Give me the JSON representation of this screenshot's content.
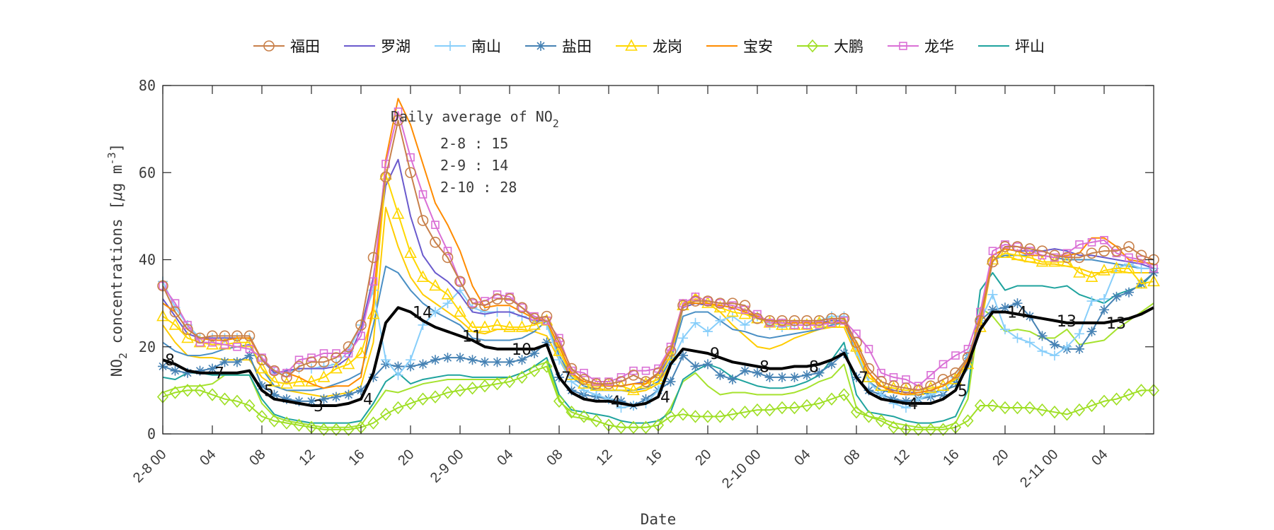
{
  "chart_data": {
    "type": "line",
    "xlabel": "Date",
    "ylabel": "NO2 concentrations [μg m-3]",
    "ylabel_parts": {
      "base": "NO",
      "sub": "2",
      "rest": " concentrations [",
      "mu": "μ",
      "g": "g m",
      "sup": "-3",
      "close": "]"
    },
    "ylim": [
      0,
      80
    ],
    "xlim_hours": [
      0,
      80
    ],
    "y_ticks": [
      0,
      20,
      40,
      60,
      80
    ],
    "x_ticks": [
      "2-8 00",
      "04",
      "08",
      "12",
      "16",
      "20",
      "2-9 00",
      "04",
      "08",
      "12",
      "16",
      "20",
      "2-10 00",
      "04",
      "08",
      "12",
      "16",
      "20",
      "2-11 00",
      "04"
    ],
    "grid": false,
    "legend_placement": "top, outside, horizontal",
    "annotation": {
      "title": "Daily average of NO",
      "title_sub": "2",
      "lines": [
        "2-8 : 15",
        "2-9 : 14",
        "2-10 : 28"
      ]
    },
    "point_labels": [
      "8",
      "7",
      "5",
      "3",
      "4",
      "14",
      "11",
      "10",
      "7",
      "4",
      "4",
      "9",
      "8",
      "8",
      "7",
      "4",
      "5",
      "14",
      "13",
      "13"
    ],
    "series": [
      {
        "name": "福田",
        "color": "#c8804a",
        "marker": "circle",
        "values": [
          34,
          28,
          24,
          22,
          22.5,
          22.5,
          22.5,
          22.5,
          17,
          14.5,
          13,
          15.5,
          16.5,
          16.5,
          17.5,
          20,
          25,
          40.5,
          59,
          72,
          60,
          49,
          44,
          40.5,
          35,
          30,
          29.5,
          31,
          31,
          29,
          26.5,
          27,
          21,
          15,
          12.5,
          11.5,
          11.5,
          12,
          13.5,
          12,
          14,
          19,
          29.5,
          30.5,
          30.5,
          30,
          30,
          29.5,
          26.5,
          26,
          26,
          26,
          26,
          26,
          26.5,
          26.5,
          21,
          15,
          12,
          11,
          10.5,
          10,
          11,
          12.5,
          14,
          17.5,
          26,
          39.5,
          43,
          43,
          42.5,
          42,
          41,
          40.5,
          40.5,
          41.5,
          42,
          42,
          43,
          41,
          40
        ]
      },
      {
        "name": "罗湖",
        "color": "#6a5acd",
        "marker": "none",
        "values": [
          31,
          27,
          23,
          22,
          22,
          22,
          22,
          22,
          17,
          14,
          14.5,
          15,
          15,
          15,
          15.5,
          17.5,
          24,
          36,
          57,
          63,
          50,
          41,
          37,
          35,
          32,
          28,
          27.5,
          28,
          28,
          27,
          26,
          26,
          20,
          14,
          11.5,
          11,
          11,
          11,
          11.5,
          12,
          13.5,
          18,
          29,
          30,
          29.5,
          29.5,
          29,
          28,
          26.5,
          26,
          25.5,
          25.5,
          25.5,
          25.5,
          26,
          26,
          20,
          14,
          11,
          10,
          9.5,
          9.5,
          10,
          11,
          12.5,
          16.5,
          26,
          41,
          42.5,
          42,
          42,
          42,
          42.5,
          42,
          41,
          41,
          40.5,
          40,
          39.5,
          39,
          38
        ]
      },
      {
        "name": "南山",
        "color": "#87cefa",
        "marker": "plus",
        "values": [
          35,
          29,
          25,
          22,
          22,
          22,
          22,
          22,
          17,
          14,
          14,
          15,
          15,
          15.5,
          16,
          19,
          25,
          33,
          17,
          13.5,
          17,
          25,
          28,
          30,
          33,
          29,
          28,
          28,
          28,
          27,
          26,
          25,
          17,
          12,
          10,
          9,
          8,
          6,
          6.5,
          7,
          10,
          16,
          22,
          25.5,
          23.5,
          26,
          27,
          25,
          27,
          25,
          24.5,
          25,
          25,
          26,
          27,
          27,
          19,
          12,
          9,
          7,
          6,
          8,
          9,
          10,
          13,
          18,
          26,
          32,
          24,
          22,
          21,
          19,
          18,
          20,
          23,
          30.5,
          31,
          38,
          39,
          38,
          38
        ]
      },
      {
        "name": "盐田",
        "color": "#4682b4",
        "marker": "asterisk",
        "values": [
          15.5,
          14.5,
          14,
          14.5,
          15,
          16.5,
          16.5,
          18,
          11,
          9,
          8,
          7.5,
          7.5,
          8,
          8.5,
          9,
          10,
          13,
          16,
          15.5,
          15.5,
          16,
          17,
          17.5,
          17.5,
          17,
          16.5,
          16.5,
          16.5,
          17,
          18.5,
          21,
          13,
          10,
          9,
          8.5,
          8,
          7.5,
          6.5,
          8,
          10,
          12,
          18,
          15.5,
          16,
          13.5,
          12.5,
          14.5,
          14,
          13,
          13,
          13,
          13.5,
          14,
          16,
          18.5,
          13,
          10,
          9,
          8,
          7.5,
          8,
          8.5,
          9,
          12,
          18,
          26,
          28.5,
          29,
          30,
          27,
          22.5,
          20.5,
          19.5,
          19.5,
          23.5,
          28.5,
          31.5,
          32.5,
          34.5,
          37
        ]
      },
      {
        "name": "龙岗",
        "color": "#ffd700",
        "marker": "triangle",
        "values": [
          27,
          25,
          22,
          21,
          20.5,
          20.5,
          21,
          21,
          15,
          12,
          11.5,
          12,
          12,
          13,
          15,
          16,
          18.5,
          27.5,
          59.5,
          50.5,
          41.5,
          36,
          34,
          32,
          28,
          24.5,
          24.5,
          25,
          24.5,
          24.5,
          25,
          26,
          19,
          13.5,
          11.5,
          11,
          11,
          11,
          10,
          11.5,
          12.5,
          18,
          29.5,
          31,
          30,
          29,
          28,
          27.5,
          26.5,
          25.5,
          25,
          25,
          25,
          25.5,
          25.5,
          25.5,
          20,
          13,
          11,
          10.5,
          10,
          10,
          10.5,
          11,
          12.5,
          16,
          24.5,
          40,
          41.5,
          41,
          40.5,
          39.5,
          39.5,
          39.5,
          37,
          36,
          37.5,
          38,
          38,
          34.5,
          35
        ]
      },
      {
        "name": "宝安",
        "color": "#ff8c00",
        "marker": "none",
        "values": [
          30,
          28,
          24,
          22,
          21.5,
          21.5,
          22,
          22,
          17,
          14.5,
          14,
          13,
          11.5,
          10.5,
          11,
          11,
          13,
          30,
          63,
          77,
          71,
          62,
          53,
          48,
          42,
          34,
          29,
          29.5,
          29.5,
          28,
          26.5,
          26,
          20,
          14,
          12,
          11.5,
          11,
          11,
          11.5,
          11.5,
          14,
          20,
          30,
          30,
          30,
          29.5,
          29,
          28,
          27,
          26,
          25.5,
          25.5,
          25.5,
          25.5,
          25.5,
          25.5,
          20,
          14,
          11,
          9.5,
          9,
          9.5,
          10,
          11,
          13,
          17,
          27,
          41,
          42.5,
          42,
          41,
          41,
          40.5,
          41,
          41.5,
          45,
          45,
          43,
          40,
          39.5,
          39
        ]
      },
      {
        "name": "大鹏",
        "color": "#9fdf25",
        "marker": "diamond",
        "values": [
          8.5,
          9.5,
          10,
          10,
          9,
          8,
          7.5,
          6.5,
          4,
          3,
          2.5,
          2,
          1.5,
          1,
          1,
          1,
          1.5,
          2.5,
          4.5,
          6,
          7,
          8,
          8.5,
          9.5,
          10,
          10.5,
          11,
          11.5,
          12,
          13,
          14.5,
          15.5,
          7.5,
          5,
          4,
          3,
          2,
          1.5,
          1.5,
          1.5,
          2,
          4,
          4.5,
          4,
          4,
          4,
          4.5,
          5,
          5.5,
          5.5,
          6,
          6,
          6.5,
          7,
          8,
          9,
          5,
          4,
          3,
          1.5,
          1,
          1,
          1,
          1,
          1.5,
          3,
          6.5,
          6.5,
          6,
          6,
          6,
          5.5,
          5,
          4.5,
          5.5,
          6.5,
          7.5,
          8,
          9,
          10,
          10
        ]
      },
      {
        "name": "龙华",
        "color": "#da70d6",
        "marker": "square",
        "values": [
          34,
          30,
          25,
          21,
          21,
          20.5,
          20,
          19.5,
          17.5,
          14.5,
          14,
          17,
          17.5,
          18.5,
          18.5,
          18.5,
          22.5,
          35,
          62,
          74,
          63.5,
          55,
          48,
          42,
          35,
          30,
          30.5,
          32,
          31.5,
          29,
          27,
          26,
          22,
          14.5,
          14,
          12,
          12,
          13,
          14.5,
          14.5,
          15,
          20,
          30,
          31.5,
          30.5,
          30,
          29.5,
          28.5,
          27.5,
          25.5,
          25.5,
          25,
          25,
          25,
          25.5,
          26,
          23,
          19.5,
          14,
          13,
          12.5,
          11,
          13.5,
          16,
          18,
          19.5,
          28,
          42,
          43.5,
          43,
          42,
          41,
          40.5,
          41.5,
          43.5,
          44,
          44.5,
          41.5,
          40.5,
          40,
          38
        ]
      },
      {
        "name": "坪山",
        "color": "#1fa39e",
        "marker": "none",
        "values": [
          13,
          12.5,
          14,
          14,
          13.5,
          13.5,
          13.5,
          13.5,
          8,
          4.5,
          3.5,
          3,
          2.5,
          2.5,
          2.5,
          2.5,
          3,
          7,
          12,
          14,
          11.5,
          12.5,
          13,
          13.5,
          13.5,
          13,
          13,
          13,
          13,
          14,
          15.5,
          17.5,
          9,
          5.5,
          5,
          4.5,
          4,
          3,
          2.5,
          2.5,
          3,
          5,
          12.5,
          14.5,
          16,
          15,
          13,
          12,
          11,
          10.5,
          10.5,
          11,
          12,
          13.5,
          17,
          21,
          9,
          5,
          4.5,
          4,
          3,
          2.5,
          2.5,
          3,
          4,
          10,
          33,
          37,
          33,
          34,
          34,
          34,
          33.5,
          34,
          32,
          31,
          30,
          32,
          33,
          34,
          37
        ]
      },
      {
        "color": "#a6e22e",
        "marker": "none",
        "values": [
          9.5,
          10.5,
          11,
          11,
          11.5,
          13.5,
          13.5,
          13.5,
          7,
          4,
          3,
          2.5,
          2,
          1.5,
          1.5,
          1.5,
          2,
          6,
          10,
          9.5,
          10.5,
          11.5,
          12,
          12.5,
          12.5,
          12.5,
          12.5,
          12.5,
          13,
          14,
          15.5,
          16.5,
          8,
          4,
          3.5,
          3,
          2,
          1.5,
          1.5,
          1.5,
          2,
          6,
          12,
          14,
          11,
          9,
          9.5,
          9.5,
          9,
          9,
          9,
          9.5,
          10.5,
          12,
          13,
          16,
          6,
          4,
          3.5,
          2.5,
          2,
          1.5,
          1.5,
          1.5,
          2.5,
          8,
          29,
          27,
          23.5,
          24,
          23.5,
          22,
          22,
          24,
          20.5,
          21,
          21.5,
          24,
          26,
          28,
          30
        ]
      },
      {
        "color": "#ffcc00",
        "marker": "none",
        "values": [
          25,
          21,
          18,
          17.5,
          17.5,
          17,
          17,
          17,
          13,
          11,
          10,
          9.5,
          9,
          8.5,
          9,
          9.5,
          11,
          21,
          52,
          43,
          36,
          32,
          30,
          28,
          26,
          23.5,
          23,
          24,
          24,
          24,
          23.5,
          22.5,
          17,
          13,
          11,
          10.5,
          10,
          10,
          9.5,
          10,
          11.5,
          16,
          29,
          32,
          30,
          28,
          25,
          22.5,
          20,
          19.5,
          20.5,
          22,
          23,
          24,
          24.5,
          24.5,
          18,
          12,
          10,
          9.5,
          9,
          9,
          9.5,
          10,
          11,
          15,
          24,
          40,
          41,
          40,
          39.5,
          39,
          39,
          38.5,
          38,
          37,
          37,
          37.5,
          37,
          37,
          37
        ]
      },
      {
        "color": "#4a8fc4",
        "marker": "none",
        "values": [
          21,
          19,
          18,
          18,
          18.5,
          19.5,
          20,
          20.5,
          15,
          11,
          10,
          10,
          10,
          10.5,
          11.5,
          12.5,
          14,
          25,
          38.5,
          37,
          33,
          30,
          28,
          26.5,
          25,
          22,
          21.5,
          21.5,
          21.5,
          22,
          23.5,
          26,
          18,
          13,
          11,
          10,
          10,
          10,
          10,
          10.5,
          12,
          17,
          27,
          28,
          28,
          26,
          24,
          23.5,
          22.5,
          22,
          22.5,
          23,
          23.5,
          24,
          25,
          25.5,
          19,
          12,
          10,
          9.5,
          9,
          9,
          9.5,
          10,
          11,
          15,
          27,
          40,
          41,
          41,
          41,
          41,
          40.5,
          40,
          40,
          40,
          39.5,
          39,
          38.5,
          38,
          38
        ]
      }
    ],
    "average": {
      "color": "#000000",
      "values": [
        17,
        16,
        14.5,
        14,
        14,
        14,
        14,
        14.5,
        10,
        8,
        7.5,
        7,
        6.5,
        6.5,
        6.5,
        7,
        8,
        14,
        25.5,
        29,
        28,
        26,
        24.5,
        23.5,
        22.5,
        21.5,
        20,
        19.5,
        19.5,
        19.5,
        19.5,
        20.5,
        13,
        9.5,
        8,
        7.5,
        7.5,
        7,
        6.5,
        7,
        8.5,
        16,
        19.5,
        19,
        18.5,
        17.5,
        16.5,
        16,
        15.5,
        15,
        15,
        15.5,
        15.5,
        16,
        17,
        18.5,
        13,
        9.5,
        8,
        7.5,
        7,
        7,
        7,
        8,
        10,
        16,
        24,
        28,
        28,
        27.5,
        27,
        26.5,
        26,
        25.5,
        25.5,
        25.5,
        25.5,
        26,
        26.5,
        27.5,
        29
      ]
    }
  }
}
